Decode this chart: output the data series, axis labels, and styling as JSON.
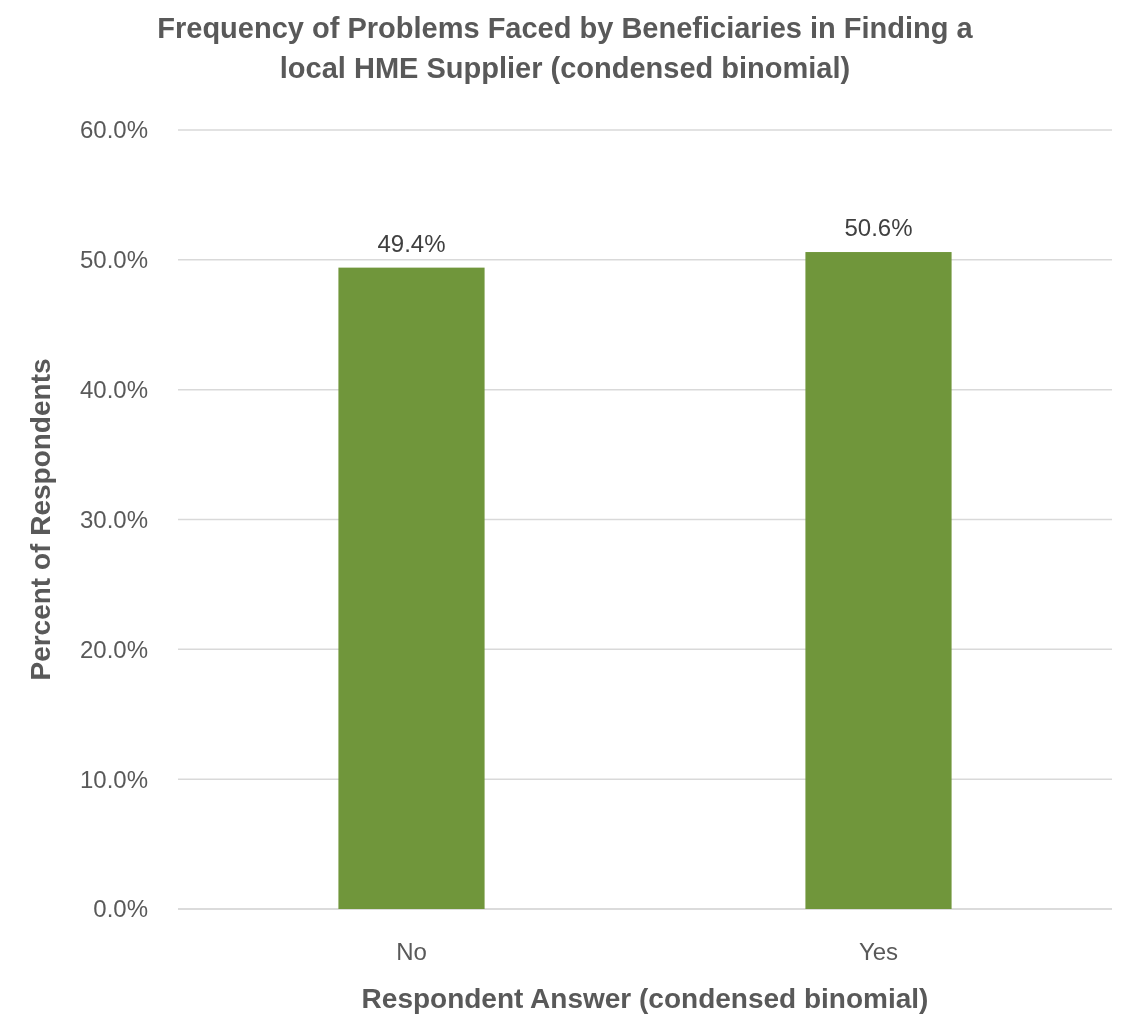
{
  "chart_data": {
    "type": "bar",
    "title": "Frequency of Problems Faced by Beneficiaries in Finding a local HME Supplier (condensed binomial)",
    "xlabel": "Respondent Answer (condensed binomial)",
    "ylabel": "Percent of Respondents",
    "categories": [
      "No",
      "Yes"
    ],
    "values": [
      49.4,
      50.6
    ],
    "value_labels": [
      "49.4%",
      "50.6%"
    ],
    "color": "#70963b",
    "ylim": [
      0,
      60
    ],
    "yticks": [
      {
        "value": 0,
        "label": "0.0%"
      },
      {
        "value": 10,
        "label": "10.0%"
      },
      {
        "value": 20,
        "label": "20.0%"
      },
      {
        "value": 30,
        "label": "30.0%"
      },
      {
        "value": 40,
        "label": "40.0%"
      },
      {
        "value": 50,
        "label": "50.0%"
      },
      {
        "value": 60,
        "label": "60.0%"
      }
    ],
    "grid": "y"
  }
}
